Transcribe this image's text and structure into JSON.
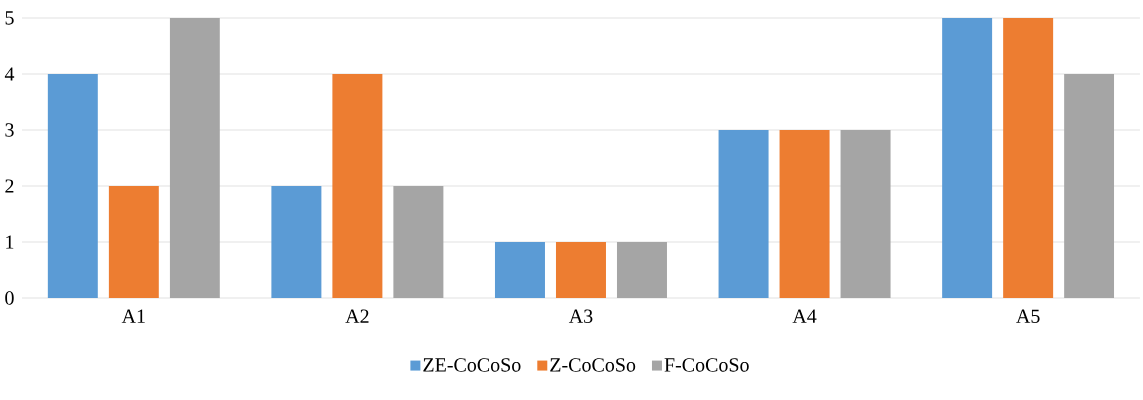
{
  "chart_data": {
    "type": "bar",
    "categories": [
      "A1",
      "A2",
      "A3",
      "A4",
      "A5"
    ],
    "series": [
      {
        "name": "ZE-CoCoSo",
        "color": "#5b9bd5",
        "values": [
          4,
          2,
          1,
          3,
          5
        ]
      },
      {
        "name": "Z-CoCoSo",
        "color": "#ed7d31",
        "values": [
          2,
          4,
          1,
          3,
          5
        ]
      },
      {
        "name": "F-CoCoSo",
        "color": "#a5a5a5",
        "values": [
          5,
          2,
          1,
          3,
          4
        ]
      }
    ],
    "ylim": [
      0,
      5
    ],
    "yticks": [
      0,
      1,
      2,
      3,
      4,
      5
    ],
    "grid": "y",
    "legend": "bottom"
  }
}
